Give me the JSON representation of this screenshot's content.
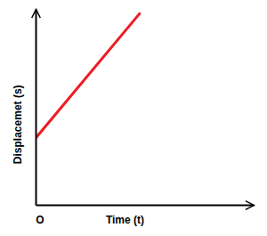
{
  "chart_data": {
    "type": "line",
    "x_label": "Time (t)",
    "y_label": "Displacemet (s)",
    "annotations": [
      {
        "text": "O"
      }
    ],
    "x": [
      0,
      4.8
    ],
    "values": [
      3.4,
      9.8
    ],
    "color": "#ed1c24",
    "xlim": [
      0,
      10
    ],
    "ylim": [
      0,
      10
    ],
    "xticks": [],
    "yticks": [],
    "tick_labels": false,
    "grid": false
  }
}
